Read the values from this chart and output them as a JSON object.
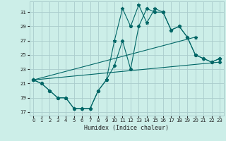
{
  "xlabel": "Humidex (Indice chaleur)",
  "background_color": "#cceee8",
  "grid_color": "#aacccc",
  "line_color": "#006666",
  "xlim": [
    -0.5,
    23.5
  ],
  "ylim": [
    16.5,
    32.5
  ],
  "yticks": [
    17,
    19,
    21,
    23,
    25,
    27,
    29,
    31
  ],
  "xticks": [
    0,
    1,
    2,
    3,
    4,
    5,
    6,
    7,
    8,
    9,
    10,
    11,
    12,
    13,
    14,
    15,
    16,
    17,
    18,
    19,
    20,
    21,
    22,
    23
  ],
  "line1_x": [
    0,
    1,
    2,
    3,
    4,
    5,
    6,
    7,
    8,
    9,
    10,
    11,
    12,
    13,
    14,
    15,
    16,
    17,
    18,
    19,
    20,
    21,
    22,
    23
  ],
  "line1_y": [
    21.5,
    21.0,
    20.0,
    19.0,
    19.0,
    17.5,
    17.5,
    17.5,
    20.0,
    21.5,
    27.0,
    31.5,
    29.0,
    32.0,
    29.5,
    31.5,
    31.0,
    28.5,
    29.0,
    27.5,
    25.0,
    24.5,
    24.0,
    24.5
  ],
  "line2_x": [
    0,
    1,
    2,
    3,
    4,
    5,
    6,
    7,
    8,
    9,
    10,
    11,
    12,
    13,
    14,
    15,
    16,
    17,
    18,
    19,
    20,
    21,
    22,
    23
  ],
  "line2_y": [
    21.5,
    21.0,
    20.0,
    19.0,
    19.0,
    17.5,
    17.5,
    17.5,
    20.0,
    21.5,
    23.5,
    27.0,
    23.0,
    29.0,
    31.5,
    31.0,
    31.0,
    28.5,
    29.0,
    27.5,
    25.0,
    24.5,
    24.0,
    24.5
  ],
  "line3_x": [
    0,
    20
  ],
  "line3_y": [
    21.5,
    27.5
  ],
  "line4_x": [
    0,
    23
  ],
  "line4_y": [
    21.5,
    24.0
  ]
}
